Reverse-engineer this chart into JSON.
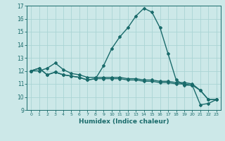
{
  "xlabel": "Humidex (Indice chaleur)",
  "ylabel": "",
  "bg_color": "#cce8e8",
  "line_color": "#1a6b6b",
  "grid_color": "#aad4d4",
  "x_values": [
    0,
    1,
    2,
    3,
    4,
    5,
    6,
    7,
    8,
    9,
    10,
    11,
    12,
    13,
    14,
    15,
    16,
    17,
    18,
    19,
    20,
    21,
    22,
    23
  ],
  "line1": [
    12.0,
    12.2,
    11.7,
    11.9,
    11.7,
    11.6,
    11.5,
    11.3,
    11.4,
    12.4,
    13.7,
    14.6,
    15.3,
    16.2,
    16.8,
    16.5,
    15.3,
    13.3,
    11.3,
    10.9,
    10.9,
    9.4,
    9.5,
    9.8
  ],
  "line2": [
    12.0,
    12.2,
    11.7,
    11.9,
    11.7,
    11.6,
    11.5,
    11.3,
    11.4,
    11.4,
    11.4,
    11.4,
    11.3,
    11.3,
    11.2,
    11.2,
    11.1,
    11.1,
    11.0,
    11.0,
    10.9,
    10.5,
    9.8,
    9.8
  ],
  "line3": [
    12.0,
    12.0,
    12.2,
    12.6,
    12.1,
    11.8,
    11.7,
    11.5,
    11.5,
    11.5,
    11.5,
    11.5,
    11.4,
    11.4,
    11.3,
    11.3,
    11.2,
    11.2,
    11.1,
    11.1,
    11.0,
    10.5,
    9.8,
    9.8
  ],
  "ylim": [
    9,
    17
  ],
  "yticks": [
    9,
    10,
    11,
    12,
    13,
    14,
    15,
    16,
    17
  ],
  "xlim": [
    -0.5,
    23.5
  ],
  "xticks": [
    0,
    1,
    2,
    3,
    4,
    5,
    6,
    7,
    8,
    9,
    10,
    11,
    12,
    13,
    14,
    15,
    16,
    17,
    18,
    19,
    20,
    21,
    22,
    23
  ],
  "marker": "D",
  "markersize": 2.0,
  "linewidth": 1.0,
  "tick_fontsize": 5.5,
  "xlabel_fontsize": 6.5
}
